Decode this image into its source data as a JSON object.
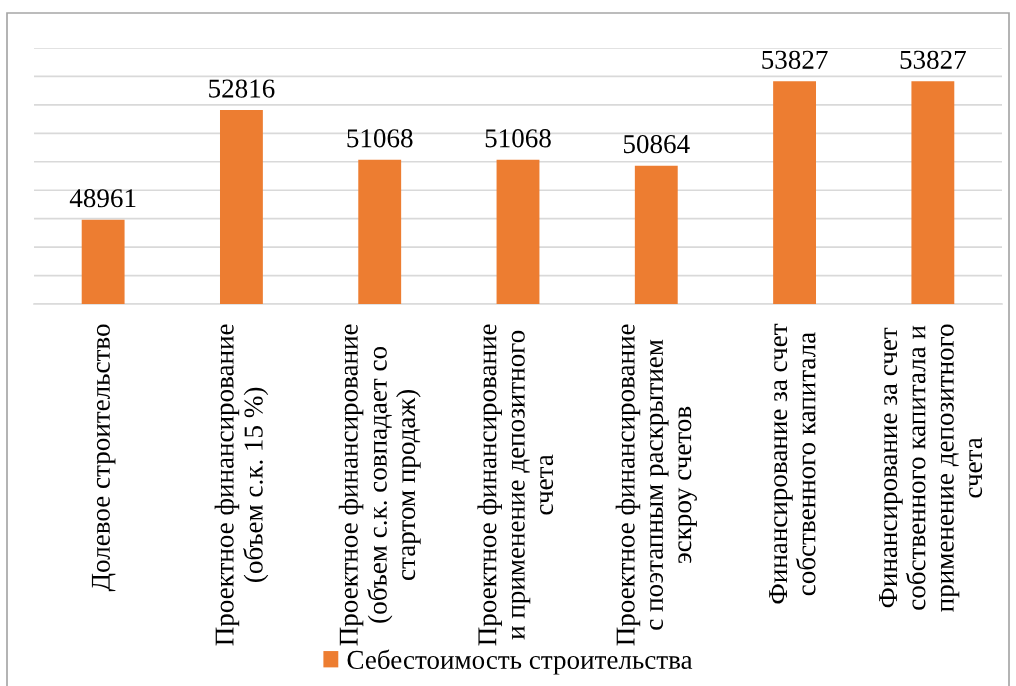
{
  "chart_data": {
    "type": "bar",
    "categories": [
      "Долевое строительство",
      "Проектное финансирование\n(объем с.к. 15 %)",
      "Проектное финансирование\n(объем с.к. совпадает со\nстартом продаж)",
      "Проектное финансирование\nи применение депозитного\nсчета",
      "Проектное финансирование\nс поэтапным раскрытием\nэскроу счетов",
      "Финансирование за счет\nсобственного капитала",
      "Финансирование за счет\nсобственного капитала и\nприменение депозитного\nсчета"
    ],
    "series": [
      {
        "name": "Себестоимость строительства",
        "color": "#ed7d31",
        "values": [
          48961,
          52816,
          51068,
          51068,
          50864,
          53827,
          53827
        ]
      }
    ],
    "ylim": [
      46000,
      55000
    ],
    "yticks": [
      {
        "value": 46000,
        "label": null
      },
      {
        "value": 47000,
        "label": null
      },
      {
        "value": 48000,
        "label": null
      },
      {
        "value": 49000,
        "label": null
      },
      {
        "value": 50000,
        "label": null
      },
      {
        "value": 51000,
        "label": null
      },
      {
        "value": 52000,
        "label": null
      },
      {
        "value": 53000,
        "label": null
      },
      {
        "value": 54000,
        "label": null
      },
      {
        "value": 55000,
        "label": null
      }
    ],
    "tick_labels": "x",
    "grid": "y",
    "legend": "bottom",
    "data_labels": true
  }
}
